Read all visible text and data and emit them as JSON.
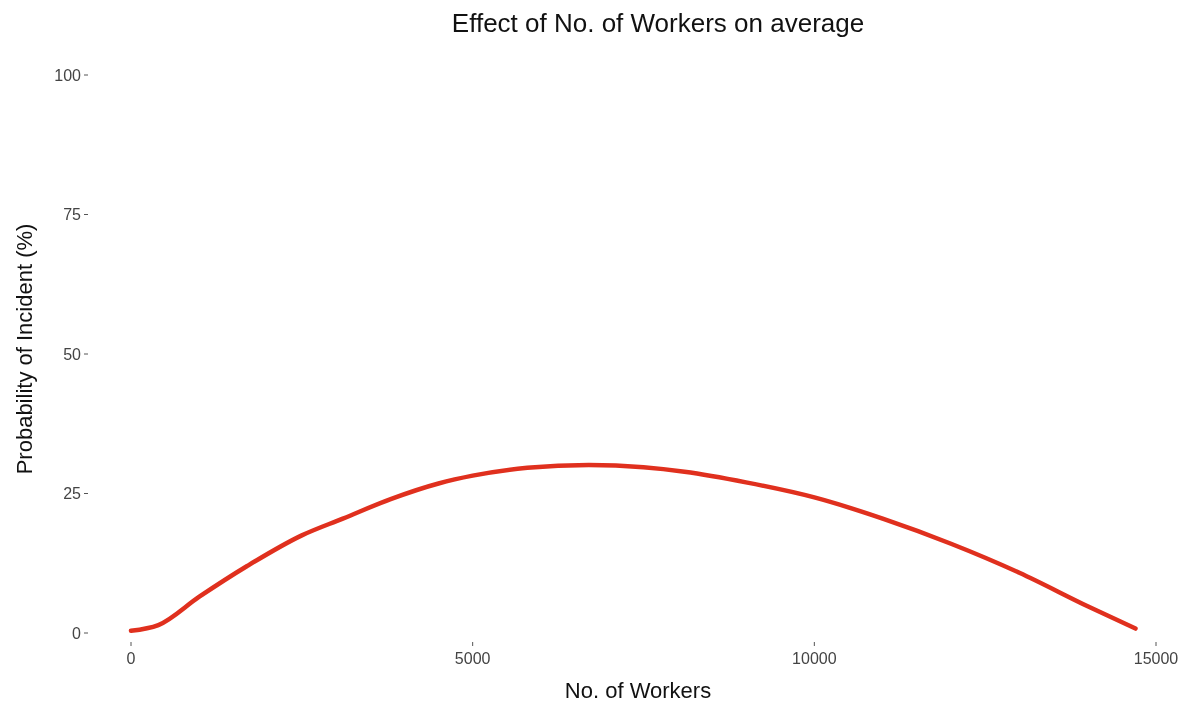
{
  "chart_data": {
    "type": "line",
    "title": "Effect of No. of Workers on average",
    "xlabel": "No. of Workers",
    "ylabel": "Probability of Incident (%)",
    "x": [
      0,
      400,
      1000,
      1700,
      2500,
      3100,
      3800,
      4500,
      5000,
      5800,
      6700,
      7500,
      8100,
      9000,
      10000,
      11000,
      12000,
      13000,
      14000,
      14700
    ],
    "series": [
      {
        "color": "#e0301e",
        "values": [
          0.4,
          1.4,
          6.5,
          12,
          17.5,
          20.5,
          24,
          26.8,
          28.2,
          29.6,
          30.1,
          29.7,
          28.9,
          27,
          24.3,
          20.5,
          16,
          10.8,
          4.8,
          0.8
        ]
      }
    ],
    "xlim": [
      0,
      15000
    ],
    "xticks": [
      0,
      5000,
      10000,
      15000
    ],
    "ylim": [
      0,
      100
    ],
    "yticks": [
      0,
      25,
      50,
      75,
      100
    ],
    "grid": false
  }
}
